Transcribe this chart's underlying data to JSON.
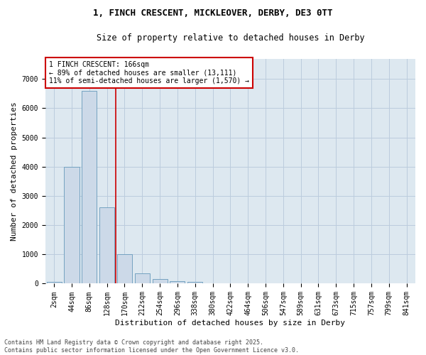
{
  "title_line1": "1, FINCH CRESCENT, MICKLEOVER, DERBY, DE3 0TT",
  "title_line2": "Size of property relative to detached houses in Derby",
  "xlabel": "Distribution of detached houses by size in Derby",
  "ylabel": "Number of detached properties",
  "categories": [
    "2sqm",
    "44sqm",
    "86sqm",
    "128sqm",
    "170sqm",
    "212sqm",
    "254sqm",
    "296sqm",
    "338sqm",
    "380sqm",
    "422sqm",
    "464sqm",
    "506sqm",
    "547sqm",
    "589sqm",
    "631sqm",
    "673sqm",
    "715sqm",
    "757sqm",
    "799sqm",
    "841sqm"
  ],
  "values": [
    50,
    4000,
    6600,
    2600,
    1000,
    350,
    150,
    80,
    60,
    0,
    0,
    0,
    0,
    0,
    0,
    0,
    0,
    0,
    0,
    0,
    0
  ],
  "bar_color": "#ccd9e8",
  "bar_edgecolor": "#6699bb",
  "grid_color": "#bbccdd",
  "background_color": "#dde8f0",
  "annotation_line1": "1 FINCH CRESCENT: 166sqm",
  "annotation_line2": "← 89% of detached houses are smaller (13,111)",
  "annotation_line3": "11% of semi-detached houses are larger (1,570) →",
  "annotation_box_color": "#cc0000",
  "vline_x_index": 4,
  "ylim": [
    0,
    7700
  ],
  "yticks": [
    0,
    1000,
    2000,
    3000,
    4000,
    5000,
    6000,
    7000
  ],
  "footer_line1": "Contains HM Land Registry data © Crown copyright and database right 2025.",
  "footer_line2": "Contains public sector information licensed under the Open Government Licence v3.0.",
  "title_fontsize": 9,
  "subtitle_fontsize": 8.5,
  "axis_label_fontsize": 8,
  "tick_fontsize": 7,
  "annotation_fontsize": 7,
  "footer_fontsize": 6
}
